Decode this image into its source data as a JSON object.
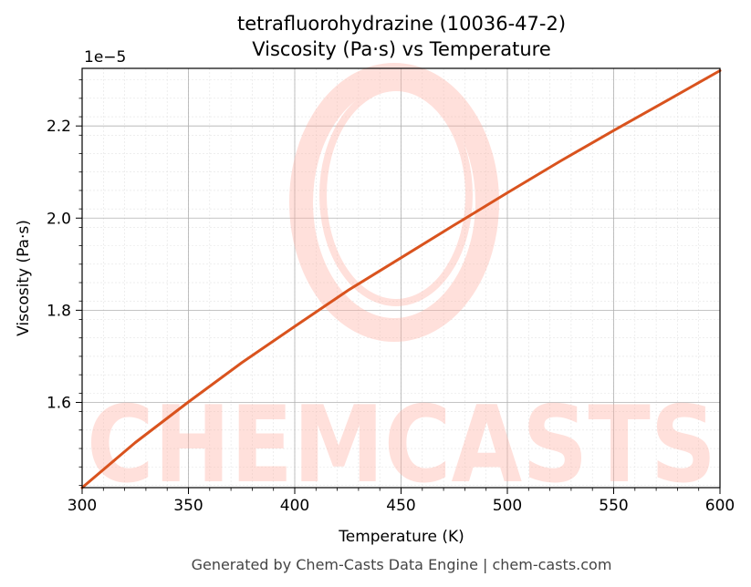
{
  "chart_data": {
    "type": "line",
    "title": "tetrafluorohydrazine (10036-47-2)",
    "subtitle": "Viscosity (Pa·s) vs Temperature",
    "xlabel": "Temperature (K)",
    "ylabel": "Viscosity (Pa·s)",
    "y_offset_label": "1e−5",
    "xlim": [
      300,
      600
    ],
    "ylim": [
      1.415,
      2.325
    ],
    "x_ticks": [
      300,
      350,
      400,
      450,
      500,
      550,
      600
    ],
    "y_ticks": [
      1.6,
      1.8,
      2.0,
      2.2
    ],
    "y_tick_labels": [
      "1.6",
      "1.8",
      "2.0",
      "2.2"
    ],
    "grid": true,
    "line_color": "#d9531e",
    "series": [
      {
        "x": [
          300,
          325,
          350,
          375,
          400,
          425,
          450,
          475,
          500,
          525,
          550,
          575,
          600
        ],
        "values": [
          1.415,
          1.513,
          1.601,
          1.686,
          1.765,
          1.843,
          1.914,
          1.985,
          2.055,
          2.124,
          2.19,
          2.255,
          2.32
        ]
      }
    ]
  },
  "watermark": {
    "text": "CHEMCASTS",
    "color": "#ffb3a6"
  },
  "footer": "Generated by Chem-Casts Data Engine | chem-casts.com"
}
